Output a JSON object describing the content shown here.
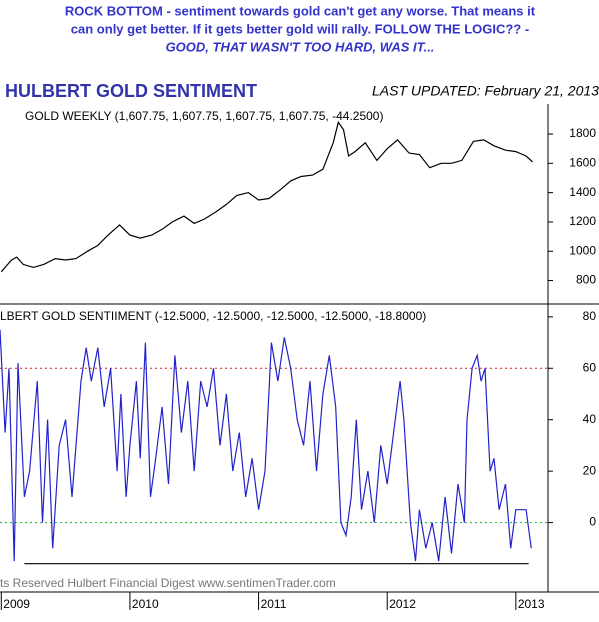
{
  "header": {
    "lines": [
      "ROCK BOTTOM - sentiment towards gold can't get any worse. That means it",
      "can only get better. If it gets better gold will rally. FOLLOW THE LOGIC?? -",
      "GOOD, THAT WASN'T TOO HARD, WAS IT..."
    ],
    "title": "HULBERT GOLD SENTIMENT",
    "updated": "LAST UPDATED:  February 21, 2013",
    "footer": "ts Reserved  Hulbert Financial Digest  www.sentimenTrader.com"
  },
  "chart_data": [
    {
      "type": "line",
      "grid": false,
      "x": [
        2009.0,
        2009.04,
        2009.08,
        2009.12,
        2009.17,
        2009.25,
        2009.33,
        2009.42,
        2009.5,
        2009.58,
        2009.67,
        2009.75,
        2009.83,
        2009.92,
        2010.0,
        2010.08,
        2010.17,
        2010.25,
        2010.33,
        2010.42,
        2010.5,
        2010.58,
        2010.67,
        2010.75,
        2010.83,
        2010.92,
        2011.0,
        2011.08,
        2011.17,
        2011.25,
        2011.33,
        2011.42,
        2011.5,
        2011.58,
        2011.62,
        2011.66,
        2011.7,
        2011.75,
        2011.83,
        2011.92,
        2012.0,
        2012.08,
        2012.17,
        2012.25,
        2012.33,
        2012.42,
        2012.5,
        2012.58,
        2012.67,
        2012.75,
        2012.83,
        2012.92,
        2013.0,
        2013.08,
        2013.13
      ],
      "series": [
        {
          "name": "GOLD WEEKLY (1,607.75, 1,607.75, 1,607.75, 1,607.75, -44.2500)",
          "color": "#000000",
          "values": [
            860,
            900,
            940,
            960,
            910,
            890,
            910,
            950,
            940,
            950,
            1000,
            1040,
            1110,
            1180,
            1110,
            1090,
            1110,
            1150,
            1200,
            1240,
            1190,
            1220,
            1270,
            1320,
            1380,
            1400,
            1350,
            1360,
            1420,
            1480,
            1510,
            1520,
            1560,
            1740,
            1880,
            1830,
            1650,
            1680,
            1740,
            1620,
            1700,
            1760,
            1670,
            1660,
            1570,
            1600,
            1600,
            1620,
            1750,
            1760,
            1720,
            1690,
            1680,
            1650,
            1610
          ]
        }
      ],
      "xlim": [
        2008.99,
        2013.25
      ],
      "ylim": [
        640,
        2005
      ],
      "yticks": [
        800,
        1000,
        1200,
        1400,
        1600,
        1800
      ]
    },
    {
      "type": "line",
      "grid": false,
      "x": [
        2008.99,
        2009.03,
        2009.06,
        2009.1,
        2009.13,
        2009.18,
        2009.22,
        2009.28,
        2009.32,
        2009.36,
        2009.4,
        2009.45,
        2009.5,
        2009.55,
        2009.62,
        2009.66,
        2009.7,
        2009.75,
        2009.8,
        2009.85,
        2009.9,
        2009.93,
        2009.97,
        2010.0,
        2010.05,
        2010.08,
        2010.12,
        2010.16,
        2010.2,
        2010.25,
        2010.3,
        2010.35,
        2010.4,
        2010.45,
        2010.5,
        2010.55,
        2010.6,
        2010.65,
        2010.7,
        2010.75,
        2010.8,
        2010.85,
        2010.9,
        2010.95,
        2011.0,
        2011.05,
        2011.1,
        2011.15,
        2011.2,
        2011.25,
        2011.3,
        2011.35,
        2011.4,
        2011.45,
        2011.5,
        2011.55,
        2011.6,
        2011.64,
        2011.68,
        2011.72,
        2011.76,
        2011.8,
        2011.85,
        2011.9,
        2011.95,
        2012.0,
        2012.05,
        2012.1,
        2012.13,
        2012.18,
        2012.22,
        2012.25,
        2012.3,
        2012.35,
        2012.4,
        2012.45,
        2012.5,
        2012.55,
        2012.6,
        2012.62,
        2012.66,
        2012.7,
        2012.73,
        2012.76,
        2012.8,
        2012.83,
        2012.87,
        2012.92,
        2012.96,
        2013.0,
        2013.04,
        2013.08,
        2013.12
      ],
      "series": [
        {
          "name": "LBERT GOLD SENTIIMENT (-12.5000, -12.5000, -12.5000, -12.5000, -18.8000)",
          "color": "#2222cc",
          "values": [
            75,
            35,
            60,
            -15,
            62,
            10,
            20,
            55,
            0,
            40,
            -10,
            30,
            40,
            10,
            55,
            68,
            55,
            68,
            45,
            60,
            20,
            50,
            10,
            30,
            55,
            25,
            70,
            10,
            25,
            45,
            15,
            65,
            35,
            55,
            20,
            55,
            45,
            60,
            30,
            50,
            20,
            35,
            10,
            25,
            5,
            20,
            70,
            55,
            72,
            60,
            40,
            30,
            55,
            20,
            50,
            65,
            45,
            0,
            -5,
            10,
            40,
            5,
            20,
            0,
            30,
            15,
            35,
            55,
            40,
            0,
            -15,
            5,
            -10,
            0,
            -15,
            10,
            -12,
            15,
            0,
            40,
            60,
            65,
            55,
            60,
            20,
            25,
            5,
            15,
            -10,
            5,
            5,
            5,
            -10
          ]
        }
      ],
      "hlines": [
        {
          "value": 60,
          "color": "#cc2222"
        },
        {
          "value": 0,
          "color": "#22aa22"
        }
      ],
      "support": {
        "x": [
          2009.18,
          2013.1
        ],
        "values": [
          -16,
          -16
        ],
        "color": "#000000"
      },
      "xlim": [
        2008.99,
        2013.25
      ],
      "xticks": [
        2009,
        2010,
        2011,
        2012,
        2013
      ],
      "ylim": [
        -27,
        85
      ],
      "yticks": [
        0,
        20,
        40,
        60,
        80
      ]
    }
  ]
}
